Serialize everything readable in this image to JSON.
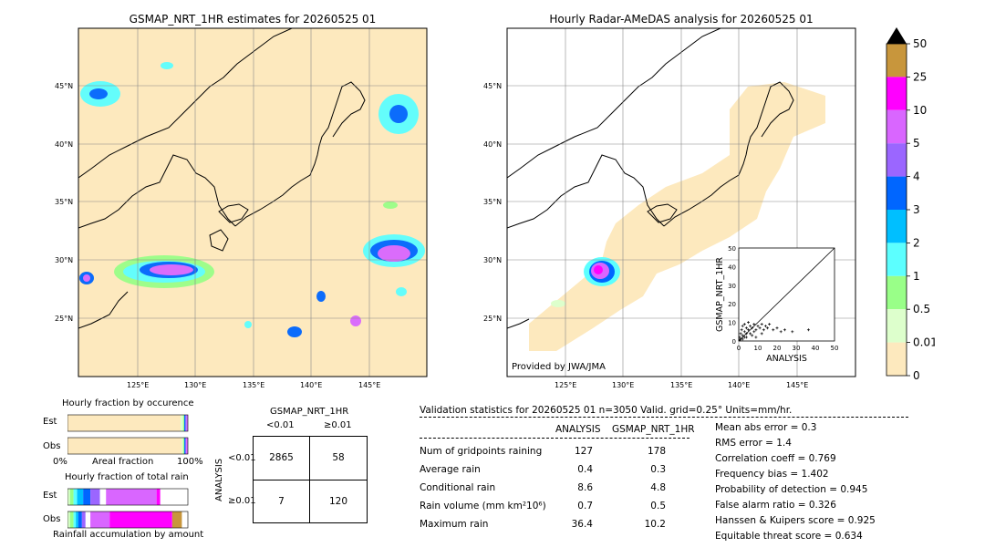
{
  "maps": {
    "left_title": "GSMAP_NRT_1HR estimates for 20260525 01",
    "right_title": "Hourly Radar-AMeDAS analysis for 20260525 01",
    "lat_labels": [
      "45°N",
      "40°N",
      "35°N",
      "30°N",
      "25°N"
    ],
    "lon_labels": [
      "125°E",
      "130°E",
      "135°E",
      "140°E",
      "145°E"
    ],
    "provider": "Provided by JWA/JMA"
  },
  "colorbar": {
    "labels": [
      "50",
      "25",
      "10",
      "5",
      "4",
      "3",
      "2",
      "1",
      "0.5",
      "0.01",
      "0"
    ],
    "colors": [
      "#c8963c",
      "#ff00ff",
      "#d966ff",
      "#9b66ff",
      "#0066ff",
      "#00bfff",
      "#5cffff",
      "#99ff88",
      "#ddffcc",
      "#fde9be"
    ]
  },
  "chart_data": [
    {
      "type": "scatter",
      "xlabel": "ANALYSIS",
      "ylabel": "GSMAP_NRT_1HR",
      "xlim": [
        0,
        50
      ],
      "ylim": [
        0,
        50
      ],
      "ticks": [
        "0",
        "10",
        "20",
        "30",
        "40",
        "50"
      ],
      "points": [
        [
          0.5,
          2
        ],
        [
          1,
          4
        ],
        [
          1.5,
          6
        ],
        [
          2,
          3
        ],
        [
          2,
          8
        ],
        [
          3,
          5
        ],
        [
          3,
          9
        ],
        [
          4,
          2
        ],
        [
          4,
          7
        ],
        [
          5,
          6
        ],
        [
          5,
          10
        ],
        [
          6,
          4
        ],
        [
          6,
          8
        ],
        [
          7,
          7
        ],
        [
          8,
          5
        ],
        [
          8,
          9
        ],
        [
          9,
          6
        ],
        [
          10,
          8
        ],
        [
          11,
          7
        ],
        [
          12,
          9
        ],
        [
          13,
          6
        ],
        [
          14,
          8
        ],
        [
          15,
          7
        ],
        [
          16,
          9
        ],
        [
          18,
          6
        ],
        [
          20,
          7
        ],
        [
          22,
          5
        ],
        [
          24,
          6
        ],
        [
          28,
          5
        ],
        [
          36.4,
          6
        ],
        [
          1,
          1
        ],
        [
          2,
          1
        ],
        [
          3,
          2
        ],
        [
          0.5,
          0.5
        ],
        [
          4,
          4
        ],
        [
          7,
          3
        ],
        [
          9,
          2
        ],
        [
          12,
          4
        ]
      ]
    },
    {
      "type": "bar",
      "title": "Hourly fraction by occurence",
      "xlabel": "Areal fraction",
      "categories": [
        "Est",
        "Obs"
      ],
      "tick_labels": [
        "0%",
        "100%"
      ],
      "series": [
        {
          "values": [
            0.94,
            0.96
          ]
        },
        {
          "values": [
            0.02,
            0.01
          ]
        },
        {
          "values": [
            0.01,
            0.01
          ]
        },
        {
          "values": [
            0.01,
            0.01
          ]
        },
        {
          "values": [
            0.01,
            0.005
          ]
        },
        {
          "values": [
            0.01,
            0.015
          ]
        }
      ]
    },
    {
      "type": "bar",
      "title": "Hourly fraction of total rain",
      "xlabel": "Rainfall accumulation by amount",
      "categories": [
        "Est",
        "Obs"
      ],
      "series": [
        {
          "values": [
            0.02,
            0.02
          ]
        },
        {
          "values": [
            0.03,
            0.03
          ]
        },
        {
          "values": [
            0.03,
            0.02
          ]
        },
        {
          "values": [
            0.05,
            0.02
          ]
        },
        {
          "values": [
            0.06,
            0.03
          ]
        },
        {
          "values": [
            0.08,
            0.03
          ]
        },
        {
          "values": [
            0.05,
            0.04
          ]
        },
        {
          "values": [
            0.42,
            0.16
          ]
        },
        {
          "values": [
            0.03,
            0.52
          ]
        },
        {
          "values": [
            0.0,
            0.08
          ]
        }
      ]
    },
    {
      "type": "table",
      "title": "GSMAP_NRT_1HR",
      "col_headers": [
        "<0.01",
        "≥0.01"
      ],
      "row_label": "ANALYSIS",
      "row_headers": [
        "<0.01",
        "≥0.01"
      ],
      "cells": [
        [
          "2865",
          "58"
        ],
        [
          "7",
          "120"
        ]
      ]
    }
  ],
  "validation": {
    "header": "Validation statistics for 20260525 01  n=3050 Valid. grid=0.25° Units=mm/hr.",
    "col_analysis": "ANALYSIS",
    "col_gsmap": "GSMAP_NRT_1HR",
    "rows": [
      {
        "label": "Num of gridpoints raining",
        "analysis": "127",
        "gsmap": "178"
      },
      {
        "label": "Average rain",
        "analysis": "0.4",
        "gsmap": "0.3"
      },
      {
        "label": "Conditional rain",
        "analysis": "8.6",
        "gsmap": "4.8"
      },
      {
        "label": "Rain volume (mm km²10⁶)",
        "analysis": "0.7",
        "gsmap": "0.5"
      },
      {
        "label": "Maximum rain",
        "analysis": "36.4",
        "gsmap": "10.2"
      }
    ],
    "scores": [
      "Mean abs error =    0.3",
      "RMS error =    1.4",
      "Correlation coeff =  0.769",
      "Frequency bias =  1.402",
      "Probability of detection =  0.945",
      "False alarm ratio =  0.326",
      "Hanssen & Kuipers score =  0.925",
      "Equitable threat score =  0.634"
    ]
  }
}
